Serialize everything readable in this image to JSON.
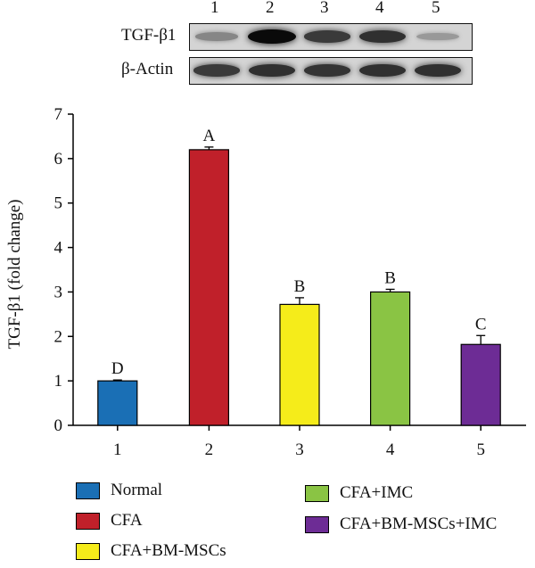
{
  "blot": {
    "lanes": [
      "1",
      "2",
      "3",
      "4",
      "5"
    ],
    "rows": [
      {
        "label": "TGF-β1",
        "intensity": [
          0.35,
          1.0,
          0.75,
          0.8,
          0.25
        ]
      },
      {
        "label": "β-Actin",
        "intensity": [
          0.75,
          0.8,
          0.78,
          0.8,
          0.8
        ]
      }
    ]
  },
  "chart_data": {
    "type": "bar",
    "categories": [
      "1",
      "2",
      "3",
      "4",
      "5"
    ],
    "values": [
      1.0,
      6.2,
      2.72,
      3.0,
      1.82
    ],
    "errors": [
      0.02,
      0.06,
      0.15,
      0.06,
      0.2
    ],
    "significance": [
      "D",
      "A",
      "B",
      "B",
      "C"
    ],
    "colors": [
      "#1a6fb5",
      "#c0202a",
      "#f5ec1a",
      "#8ac444",
      "#6d2c95"
    ],
    "ylabel": "TGF-β1 (fold change)",
    "xlabel": "",
    "ylim": [
      0,
      7
    ],
    "yticks": [
      "0",
      "1",
      "2",
      "3",
      "4",
      "5",
      "6",
      "7"
    ],
    "grid": false
  },
  "legend": {
    "entries": [
      {
        "label": "Normal",
        "color": "#1a6fb5"
      },
      {
        "label": "CFA",
        "color": "#c0202a"
      },
      {
        "label": "CFA+BM-MSCs",
        "color": "#f5ec1a"
      },
      {
        "label": "CFA+IMC",
        "color": "#8ac444"
      },
      {
        "label": "CFA+BM-MSCs+IMC",
        "color": "#6d2c95"
      }
    ]
  }
}
